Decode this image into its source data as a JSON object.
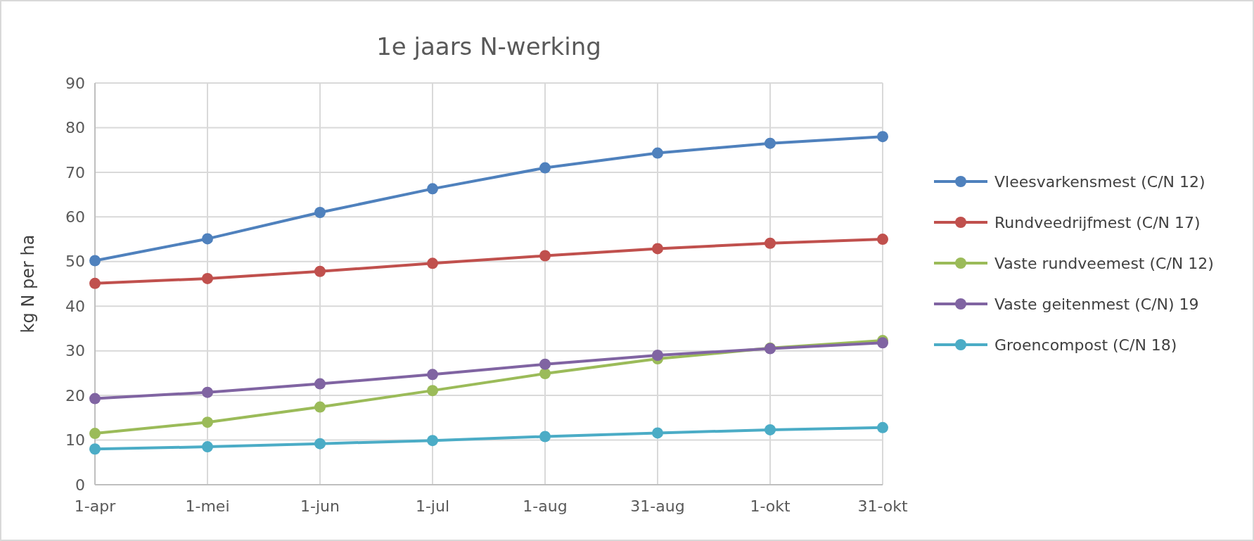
{
  "chart_data": {
    "type": "line",
    "title": "1e jaars N-werking",
    "ylabel": "kg N per ha",
    "categories": [
      "1-apr",
      "1-mei",
      "1-jun",
      "1-jul",
      "1-aug",
      "31-aug",
      "1-okt",
      "31-okt"
    ],
    "series": [
      {
        "name": "Vleesvarkensmest (C/N 12)",
        "color": "#4f81bd",
        "values": [
          50.2,
          55.1,
          61,
          66.3,
          71,
          74.3,
          76.5,
          78
        ]
      },
      {
        "name": "Rundveedrijfmest (C/N 17)",
        "color": "#c0504d",
        "values": [
          45.1,
          46.2,
          47.8,
          49.6,
          51.3,
          52.9,
          54.1,
          55
        ]
      },
      {
        "name": "Vaste rundveemest (C/N 12)",
        "color": "#9bbb59",
        "values": [
          11.5,
          14,
          17.4,
          21.1,
          24.9,
          28.2,
          30.6,
          32.3
        ]
      },
      {
        "name": "Vaste geitenmest (C/N) 19",
        "color": "#8064a2",
        "values": [
          19.3,
          20.7,
          22.6,
          24.7,
          27,
          29,
          30.5,
          31.8
        ]
      },
      {
        "name": "Groencompost (C/N 18)",
        "color": "#4bacc6",
        "values": [
          8,
          8.5,
          9.2,
          9.9,
          10.8,
          11.6,
          12.3,
          12.8
        ]
      }
    ],
    "ylim": [
      0,
      90
    ],
    "yticks": [
      0,
      10,
      20,
      30,
      40,
      50,
      60,
      70,
      80,
      90
    ],
    "grid": true,
    "legend": "right",
    "marker": "circle",
    "line_style": "solid"
  }
}
